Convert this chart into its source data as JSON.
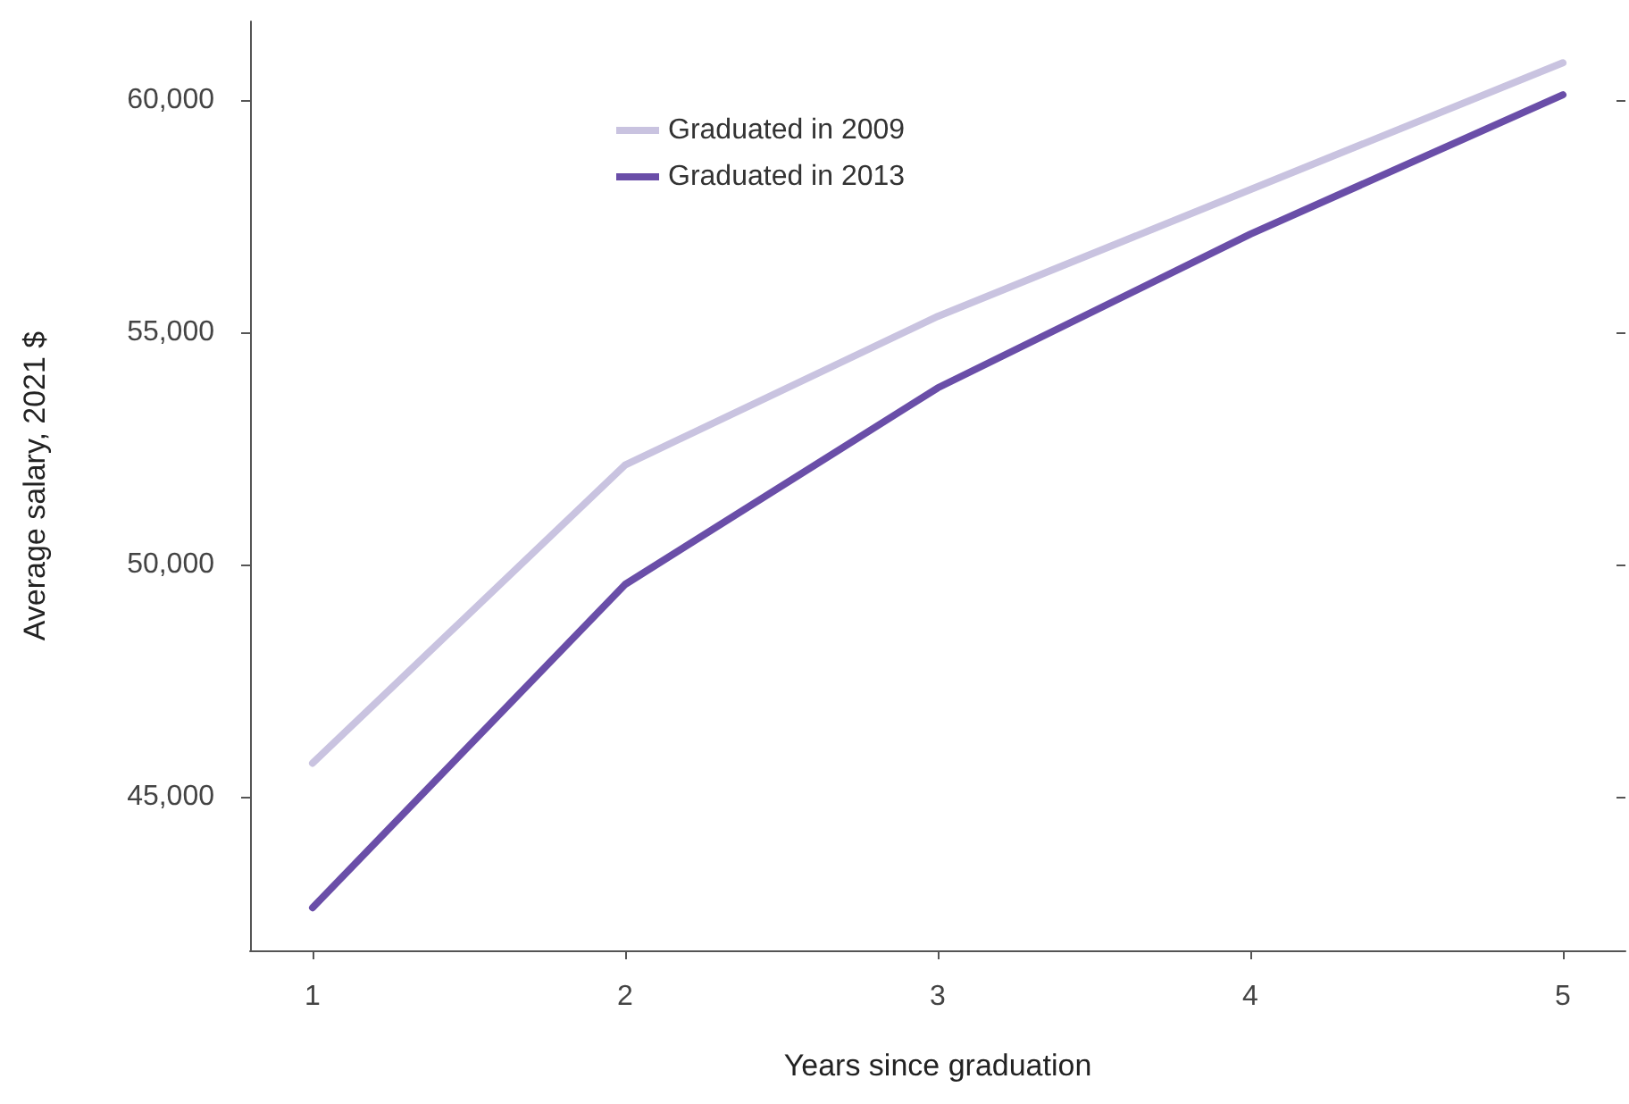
{
  "chart_data": {
    "type": "line",
    "xlabel": "Years since graduation",
    "ylabel": "Average salary, 2021 $",
    "x": [
      1,
      2,
      3,
      4,
      5
    ],
    "series": [
      {
        "name": "Graduated in 2009",
        "color": "#c9c3e0",
        "values": [
          45730,
          52150,
          55350,
          58080,
          60810
        ]
      },
      {
        "name": "Graduated in 2013",
        "color": "#6a4ea8",
        "values": [
          42620,
          49580,
          53810,
          57120,
          60120
        ]
      }
    ],
    "xlim": [
      0.8,
      5.2
    ],
    "xticks": [
      1,
      2,
      3,
      4,
      5
    ],
    "ylim": [
      41700,
      61700
    ],
    "yticks": [
      {
        "value": 45000,
        "label": "45,000"
      },
      {
        "value": 50000,
        "label": "50,000"
      },
      {
        "value": 55000,
        "label": "55,000"
      },
      {
        "value": 60000,
        "label": "60,000"
      }
    ],
    "grid": false,
    "legend": "top left",
    "marker": "none",
    "line_style": "solid"
  }
}
